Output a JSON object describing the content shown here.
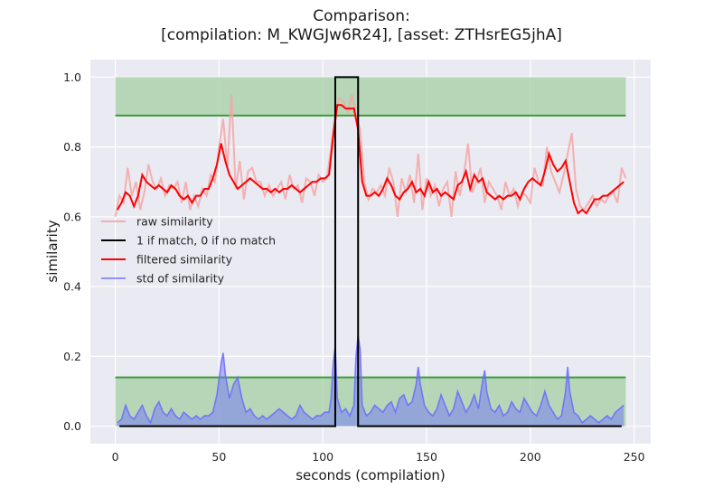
{
  "chart_data": {
    "type": "line",
    "title_line1": "Comparison:",
    "title_line2": "[compilation: M_KWGJw6R24], [asset: ZTHsrEG5jhA]",
    "xlabel": "seconds (compilation)",
    "ylabel": "similarity",
    "xlim": [
      -12,
      258
    ],
    "ylim": [
      -0.05,
      1.05
    ],
    "xticks": [
      0,
      50,
      100,
      150,
      200,
      250
    ],
    "yticks": [
      0.0,
      0.2,
      0.4,
      0.6,
      0.8,
      1.0
    ],
    "xtick_labels": [
      "0",
      "50",
      "100",
      "150",
      "200",
      "250"
    ],
    "ytick_labels": [
      "0.0",
      "0.2",
      "0.4",
      "0.6",
      "0.8",
      "1.0"
    ],
    "grid": true,
    "legend_position": "center-left",
    "thresholds": {
      "similarity_band": [
        0.89,
        1.0
      ],
      "std_band": [
        0.0,
        0.14
      ],
      "x_range": [
        0,
        246
      ]
    },
    "series": [
      {
        "name": "raw similarity",
        "color": "#f4a6a6",
        "x": [
          0,
          2,
          4,
          6,
          8,
          10,
          12,
          14,
          16,
          18,
          20,
          22,
          24,
          26,
          28,
          30,
          32,
          34,
          36,
          38,
          40,
          42,
          44,
          46,
          48,
          50,
          52,
          54,
          56,
          58,
          60,
          62,
          64,
          66,
          68,
          70,
          72,
          74,
          76,
          78,
          80,
          82,
          84,
          86,
          88,
          90,
          92,
          94,
          96,
          98,
          100,
          102,
          104,
          106,
          108,
          110,
          112,
          114,
          116,
          118,
          120,
          122,
          124,
          126,
          128,
          130,
          132,
          134,
          136,
          138,
          140,
          142,
          144,
          146,
          148,
          150,
          152,
          154,
          156,
          158,
          160,
          162,
          164,
          166,
          168,
          170,
          172,
          174,
          176,
          178,
          180,
          182,
          184,
          186,
          188,
          190,
          192,
          194,
          196,
          198,
          200,
          202,
          204,
          206,
          208,
          210,
          212,
          214,
          216,
          218,
          220,
          222,
          224,
          226,
          228,
          230,
          232,
          234,
          236,
          238,
          240,
          242,
          244,
          246
        ],
        "values": [
          0.6,
          0.66,
          0.64,
          0.74,
          0.66,
          0.7,
          0.62,
          0.67,
          0.75,
          0.7,
          0.68,
          0.71,
          0.66,
          0.69,
          0.68,
          0.7,
          0.64,
          0.7,
          0.62,
          0.66,
          0.63,
          0.68,
          0.66,
          0.72,
          0.7,
          0.8,
          0.88,
          0.74,
          0.95,
          0.68,
          0.76,
          0.65,
          0.73,
          0.74,
          0.7,
          0.7,
          0.66,
          0.69,
          0.66,
          0.68,
          0.7,
          0.65,
          0.72,
          0.68,
          0.69,
          0.64,
          0.71,
          0.7,
          0.66,
          0.72,
          0.7,
          0.71,
          0.8,
          0.9,
          0.94,
          0.93,
          0.9,
          0.95,
          0.89,
          0.85,
          0.7,
          0.65,
          0.68,
          0.67,
          0.69,
          0.66,
          0.74,
          0.7,
          0.6,
          0.71,
          0.67,
          0.72,
          0.64,
          0.78,
          0.62,
          0.71,
          0.66,
          0.69,
          0.63,
          0.68,
          0.7,
          0.6,
          0.73,
          0.66,
          0.72,
          0.81,
          0.67,
          0.7,
          0.74,
          0.64,
          0.7,
          0.68,
          0.66,
          0.62,
          0.7,
          0.66,
          0.68,
          0.63,
          0.67,
          0.66,
          0.64,
          0.74,
          0.7,
          0.69,
          0.8,
          0.73,
          0.7,
          0.67,
          0.72,
          0.78,
          0.84,
          0.68,
          0.63,
          0.62,
          0.64,
          0.66,
          0.63,
          0.65,
          0.64,
          0.66,
          0.67,
          0.64,
          0.74,
          0.71
        ]
      },
      {
        "name": "1 if match, 0 if no match",
        "color": "#000000",
        "x": [
          2,
          106,
          106,
          117,
          117,
          244
        ],
        "values": [
          0,
          0,
          1,
          1,
          0,
          0
        ]
      },
      {
        "name": "filtered similarity",
        "color": "#ff0000",
        "x": [
          1,
          3,
          5,
          7,
          9,
          11,
          13,
          15,
          17,
          19,
          21,
          23,
          25,
          27,
          29,
          31,
          33,
          35,
          37,
          39,
          41,
          43,
          45,
          47,
          49,
          51,
          53,
          55,
          57,
          59,
          61,
          63,
          65,
          67,
          69,
          71,
          73,
          75,
          77,
          79,
          81,
          83,
          85,
          87,
          89,
          91,
          93,
          95,
          97,
          99,
          101,
          103,
          105,
          107,
          109,
          111,
          113,
          115,
          117,
          119,
          121,
          123,
          125,
          127,
          129,
          131,
          133,
          135,
          137,
          139,
          141,
          143,
          145,
          147,
          149,
          151,
          153,
          155,
          157,
          159,
          161,
          163,
          165,
          167,
          169,
          171,
          173,
          175,
          177,
          179,
          181,
          183,
          185,
          187,
          189,
          191,
          193,
          195,
          197,
          199,
          201,
          203,
          205,
          207,
          209,
          211,
          213,
          215,
          217,
          219,
          221,
          223,
          225,
          227,
          229,
          231,
          233,
          235,
          237,
          239,
          241,
          243,
          245
        ],
        "values": [
          0.62,
          0.64,
          0.67,
          0.66,
          0.63,
          0.66,
          0.72,
          0.7,
          0.69,
          0.68,
          0.69,
          0.68,
          0.67,
          0.69,
          0.68,
          0.66,
          0.65,
          0.66,
          0.64,
          0.66,
          0.66,
          0.68,
          0.68,
          0.71,
          0.75,
          0.81,
          0.76,
          0.72,
          0.7,
          0.68,
          0.69,
          0.7,
          0.71,
          0.7,
          0.69,
          0.68,
          0.68,
          0.67,
          0.68,
          0.67,
          0.68,
          0.68,
          0.69,
          0.68,
          0.67,
          0.68,
          0.69,
          0.7,
          0.7,
          0.71,
          0.71,
          0.72,
          0.83,
          0.92,
          0.92,
          0.91,
          0.91,
          0.91,
          0.85,
          0.7,
          0.66,
          0.66,
          0.67,
          0.66,
          0.68,
          0.71,
          0.69,
          0.66,
          0.65,
          0.67,
          0.68,
          0.7,
          0.67,
          0.68,
          0.66,
          0.7,
          0.67,
          0.68,
          0.66,
          0.67,
          0.66,
          0.65,
          0.69,
          0.7,
          0.73,
          0.68,
          0.72,
          0.7,
          0.71,
          0.67,
          0.66,
          0.65,
          0.66,
          0.65,
          0.66,
          0.66,
          0.67,
          0.65,
          0.68,
          0.7,
          0.71,
          0.7,
          0.69,
          0.73,
          0.78,
          0.75,
          0.73,
          0.74,
          0.76,
          0.7,
          0.64,
          0.61,
          0.62,
          0.61,
          0.63,
          0.65,
          0.65,
          0.66,
          0.66,
          0.67,
          0.68,
          0.69,
          0.7
        ]
      },
      {
        "name": "std of similarity",
        "color": "#6a6aff",
        "x": [
          1,
          3,
          5,
          7,
          9,
          11,
          13,
          15,
          17,
          19,
          21,
          23,
          25,
          27,
          29,
          31,
          33,
          35,
          37,
          39,
          41,
          43,
          45,
          47,
          49,
          51,
          52,
          53,
          55,
          57,
          59,
          61,
          63,
          65,
          67,
          69,
          71,
          73,
          75,
          77,
          79,
          81,
          83,
          85,
          87,
          89,
          91,
          93,
          95,
          97,
          99,
          101,
          103,
          104,
          105,
          106,
          107,
          109,
          111,
          113,
          115,
          116,
          117,
          118,
          119,
          121,
          123,
          125,
          127,
          129,
          131,
          133,
          135,
          137,
          139,
          141,
          143,
          145,
          146,
          147,
          149,
          151,
          153,
          155,
          157,
          159,
          161,
          163,
          165,
          167,
          169,
          171,
          173,
          175,
          177,
          178,
          179,
          181,
          183,
          185,
          187,
          189,
          191,
          193,
          195,
          197,
          199,
          201,
          203,
          205,
          207,
          209,
          211,
          213,
          215,
          217,
          218,
          219,
          221,
          223,
          225,
          227,
          229,
          231,
          233,
          235,
          237,
          239,
          241,
          243,
          245
        ],
        "values": [
          0.01,
          0.02,
          0.06,
          0.03,
          0.02,
          0.04,
          0.06,
          0.03,
          0.01,
          0.05,
          0.07,
          0.04,
          0.03,
          0.05,
          0.03,
          0.02,
          0.04,
          0.03,
          0.02,
          0.03,
          0.02,
          0.03,
          0.03,
          0.04,
          0.09,
          0.18,
          0.21,
          0.15,
          0.08,
          0.12,
          0.14,
          0.08,
          0.04,
          0.05,
          0.03,
          0.02,
          0.03,
          0.02,
          0.03,
          0.04,
          0.05,
          0.04,
          0.03,
          0.02,
          0.03,
          0.06,
          0.04,
          0.03,
          0.02,
          0.03,
          0.03,
          0.04,
          0.04,
          0.08,
          0.18,
          0.23,
          0.08,
          0.04,
          0.05,
          0.03,
          0.06,
          0.2,
          0.26,
          0.22,
          0.06,
          0.03,
          0.04,
          0.06,
          0.05,
          0.04,
          0.06,
          0.07,
          0.04,
          0.08,
          0.09,
          0.06,
          0.07,
          0.12,
          0.17,
          0.12,
          0.06,
          0.04,
          0.03,
          0.05,
          0.09,
          0.06,
          0.03,
          0.05,
          0.1,
          0.07,
          0.04,
          0.06,
          0.09,
          0.05,
          0.13,
          0.16,
          0.1,
          0.05,
          0.04,
          0.06,
          0.03,
          0.04,
          0.07,
          0.05,
          0.04,
          0.08,
          0.06,
          0.04,
          0.03,
          0.06,
          0.1,
          0.06,
          0.04,
          0.02,
          0.03,
          0.1,
          0.17,
          0.1,
          0.04,
          0.03,
          0.01,
          0.02,
          0.03,
          0.02,
          0.01,
          0.02,
          0.03,
          0.02,
          0.04,
          0.05,
          0.06
        ]
      }
    ]
  }
}
